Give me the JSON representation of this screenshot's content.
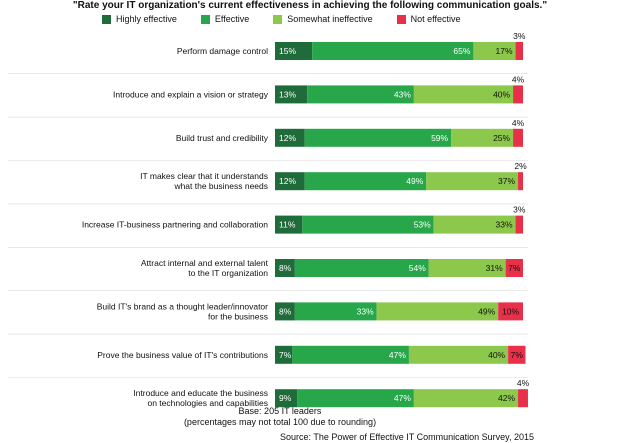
{
  "chart_data": {
    "type": "bar",
    "orientation": "horizontal",
    "stacked": true,
    "title": "\"Rate your IT organization's current effectiveness in achieving the following communication goals.\"",
    "categories": [
      [
        "Perform damage control"
      ],
      [
        "Introduce and explain a vision or strategy"
      ],
      [
        "Build trust and credibility"
      ],
      [
        "IT makes clear that it understands",
        "what the business needs"
      ],
      [
        "Increase IT-business partnering and collaboration"
      ],
      [
        "Attract internal and external talent",
        "to the IT organization"
      ],
      [
        "Build IT's brand as a thought leader/innovator",
        "for the business"
      ],
      [
        "Prove the business value of IT's contributions"
      ],
      [
        "Introduce and educate the business",
        "on technologies and capabilities"
      ]
    ],
    "series": [
      {
        "name": "Highly effective",
        "color": "#1f6b3a",
        "values": [
          15,
          13,
          12,
          12,
          11,
          8,
          8,
          7,
          9
        ]
      },
      {
        "name": "Effective",
        "color": "#27a64a",
        "values": [
          65,
          43,
          59,
          49,
          53,
          54,
          33,
          47,
          47
        ]
      },
      {
        "name": "Somewhat ineffective",
        "color": "#8cc84b",
        "values": [
          17,
          40,
          25,
          37,
          33,
          31,
          49,
          40,
          42
        ]
      },
      {
        "name": "Not effective",
        "color": "#e8304a",
        "values": [
          3,
          4,
          4,
          2,
          3,
          7,
          10,
          7,
          4
        ]
      }
    ],
    "data_labels": [
      [
        "15%",
        "65%",
        "17%",
        "3%"
      ],
      [
        "13%",
        "43%",
        "40%",
        "4%"
      ],
      [
        "12%",
        "59%",
        "25%",
        "4%"
      ],
      [
        "12%",
        "49%",
        "37%",
        "2%"
      ],
      [
        "11%",
        "53%",
        "33%",
        "3%"
      ],
      [
        "8%",
        "54%",
        "31%",
        "7%"
      ],
      [
        "8%",
        "33%",
        "49%",
        "10%"
      ],
      [
        "7%",
        "47%",
        "40%",
        "7%"
      ],
      [
        "9%",
        "47%",
        "42%",
        "4%"
      ]
    ],
    "xlim": [
      0,
      100
    ],
    "legend_position": "top"
  },
  "footer": {
    "base": "Base: 205 IT leaders",
    "note": "(percentages may not total 100 due to rounding)",
    "source": "Source: The Power of Effective IT Communication Survey, 2015"
  }
}
